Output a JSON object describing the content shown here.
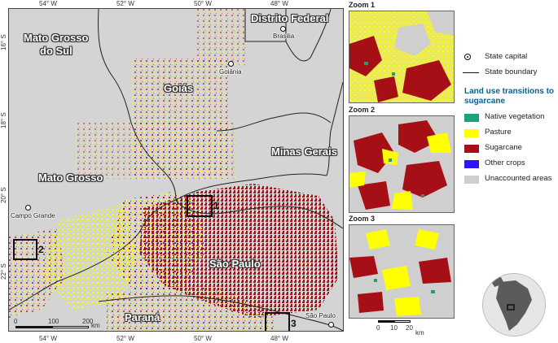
{
  "map": {
    "lon_labels_top": [
      "54° W",
      "52° W",
      "50° W",
      "48° W"
    ],
    "lon_labels_bottom": [
      "54° W",
      "52° W",
      "50° W",
      "48° W"
    ],
    "lat_labels": [
      "16° S",
      "18° S",
      "20° S",
      "22° S"
    ],
    "states": {
      "distrito_federal": "Distrito Federal",
      "mato_grosso_do_sul_1": "Mato Grosso",
      "mato_grosso_do_sul_2": "do Sul",
      "goias": "Goiás",
      "minas_gerais": "Minas Gerais",
      "mato_grosso": "Mato Grosso",
      "sao_paulo": "São Paulo",
      "parana": "Paraná"
    },
    "cities": {
      "brasilia": "Brasilia",
      "goiania": "Goiânia",
      "campo_grande": "Campo Grande",
      "sao_paulo": "São Paulo"
    },
    "zoom_box_labels": [
      "1",
      "2",
      "3"
    ],
    "scale_bar": {
      "ticks": [
        "0",
        "100",
        "200"
      ],
      "unit": "km"
    }
  },
  "zoom_panels": [
    {
      "title": "Zoom 1"
    },
    {
      "title": "Zoom 2"
    },
    {
      "title": "Zoom 3"
    }
  ],
  "zoom_scale_bar": {
    "ticks": [
      "0",
      "10",
      "20"
    ],
    "unit": "km"
  },
  "legend": {
    "state_capital": "State capital",
    "state_boundary": "State boundary",
    "heading_line1": "Land use transitions to",
    "heading_line2": "sugarcane",
    "items": [
      {
        "label": "Native vegetation",
        "color": "#1aa37a"
      },
      {
        "label": "Pasture",
        "color": "#ffff00"
      },
      {
        "label": "Sugarcane",
        "color": "#a50f15"
      },
      {
        "label": "Other crops",
        "color": "#2b14ff"
      },
      {
        "label": "Unaccounted areas",
        "color": "#cfcfcf"
      }
    ]
  }
}
